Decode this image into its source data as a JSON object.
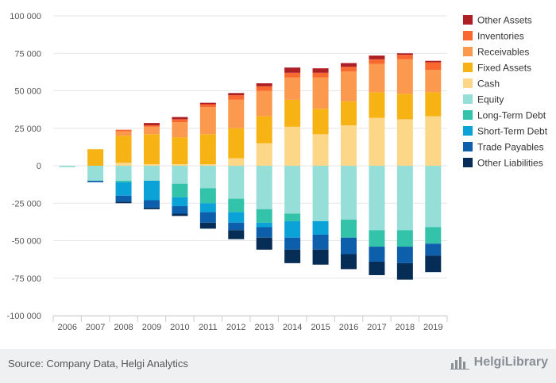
{
  "chart_data": {
    "type": "bar",
    "stacked": true,
    "categories": [
      "2006",
      "2007",
      "2008",
      "2009",
      "2010",
      "2011",
      "2012",
      "2013",
      "2014",
      "2015",
      "2016",
      "2017",
      "2018",
      "2019"
    ],
    "ylim": [
      -100000,
      100000
    ],
    "yticks": [
      100000,
      75000,
      50000,
      25000,
      0,
      -25000,
      -50000,
      -75000,
      -100000
    ],
    "ytick_labels": [
      "100 000",
      "75 000",
      "50 000",
      "25 000",
      "0",
      "-25 000",
      "-50 000",
      "-75 000",
      "-100 000"
    ],
    "grid": true,
    "legend_position": "right",
    "positive_series": [
      {
        "name": "Cash",
        "color": "#fcd788",
        "values": [
          0,
          0,
          2000,
          1000,
          1000,
          1000,
          5000,
          15000,
          26000,
          21000,
          27000,
          32000,
          31000,
          33000
        ]
      },
      {
        "name": "Fixed Assets",
        "color": "#f7b314",
        "values": [
          0,
          11000,
          18000,
          20000,
          18000,
          20000,
          20000,
          18000,
          18000,
          17000,
          16000,
          17000,
          17000,
          16000
        ]
      },
      {
        "name": "Receivables",
        "color": "#fb9a4e",
        "values": [
          0,
          0,
          3000,
          5000,
          10000,
          18000,
          19000,
          17000,
          15000,
          21000,
          20000,
          19000,
          23000,
          15000
        ]
      },
      {
        "name": "Inventories",
        "color": "#f9692f",
        "values": [
          0,
          0,
          1000,
          1000,
          2000,
          2000,
          3000,
          3000,
          3000,
          3000,
          3000,
          3000,
          3000,
          5000
        ]
      },
      {
        "name": "Other Assets",
        "color": "#ad1f24",
        "values": [
          0,
          0,
          0,
          1500,
          1500,
          1000,
          1500,
          2000,
          3500,
          3000,
          2500,
          2500,
          1000,
          1000
        ]
      }
    ],
    "negative_series": [
      {
        "name": "Equity",
        "color": "#96dfd8",
        "values": [
          -1000,
          -10000,
          -10000,
          -10000,
          -12000,
          -15000,
          -22000,
          -29000,
          -32000,
          -37000,
          -36000,
          -43000,
          -43000,
          -41000
        ]
      },
      {
        "name": "Long-Term Debt",
        "color": "#33c3aa",
        "values": [
          0,
          0,
          -1000,
          0,
          -9000,
          -10000,
          -9000,
          -9000,
          -5000,
          0,
          -12000,
          -11000,
          -11000,
          -11000
        ]
      },
      {
        "name": "Short-Term Debt",
        "color": "#0ba2d8",
        "values": [
          0,
          0,
          -9000,
          -13000,
          -6000,
          -6000,
          -7000,
          -3000,
          -11000,
          -9000,
          0,
          0,
          0,
          0
        ]
      },
      {
        "name": "Trade Payables",
        "color": "#0d5fac",
        "values": [
          0,
          -1000,
          -4000,
          -5000,
          -5000,
          -7000,
          -5000,
          -7000,
          -8000,
          -10000,
          -11000,
          -10000,
          -11000,
          -8000
        ]
      },
      {
        "name": "Other Liabilities",
        "color": "#062d56",
        "values": [
          0,
          0,
          -1000,
          -1000,
          -1500,
          -4000,
          -6000,
          -8000,
          -9000,
          -10000,
          -10000,
          -9000,
          -11000,
          -11000
        ]
      }
    ],
    "legend": [
      {
        "name": "Other Assets",
        "color": "#ad1f24"
      },
      {
        "name": "Inventories",
        "color": "#f9692f"
      },
      {
        "name": "Receivables",
        "color": "#fb9a4e"
      },
      {
        "name": "Fixed Assets",
        "color": "#f7b314"
      },
      {
        "name": "Cash",
        "color": "#fcd788"
      },
      {
        "name": "Equity",
        "color": "#96dfd8"
      },
      {
        "name": "Long-Term Debt",
        "color": "#33c3aa"
      },
      {
        "name": "Short-Term Debt",
        "color": "#0ba2d8"
      },
      {
        "name": "Trade Payables",
        "color": "#0d5fac"
      },
      {
        "name": "Other Liabilities",
        "color": "#062d56"
      }
    ]
  },
  "footer": {
    "source": "Source: Company Data, Helgi Analytics",
    "brand": "HelgiLibrary",
    "logo_icon": "bar-chart-logo-icon"
  }
}
